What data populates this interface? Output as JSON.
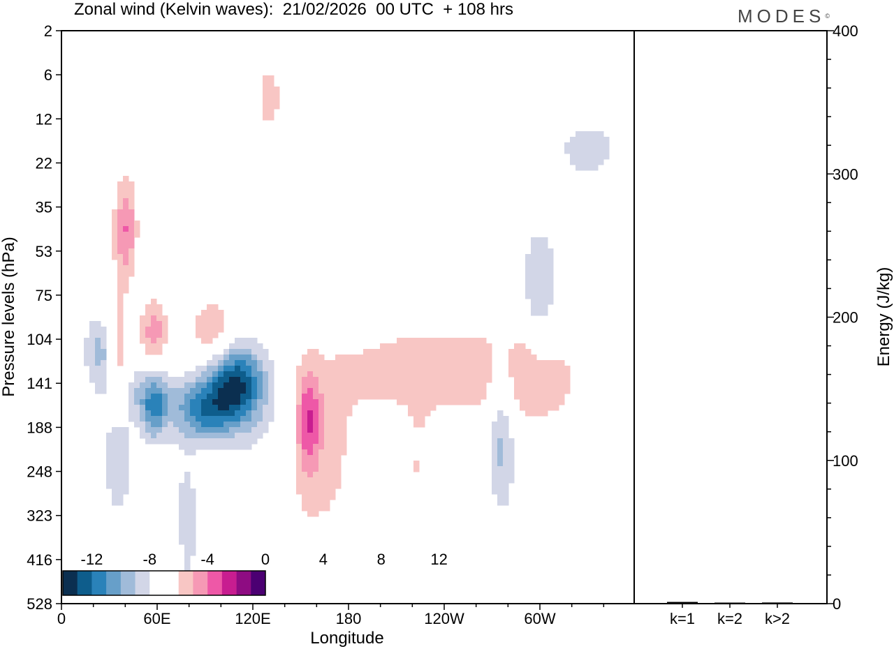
{
  "header": {
    "title": "Zonal wind (Kelvin waves):  21/02/2026  00 UTC  + 108 hrs",
    "logo": "MODES",
    "logo_mark": "©"
  },
  "chart_data": [
    {
      "type": "heatmap",
      "title": "Zonal wind (Kelvin waves):  21/02/2026  00 UTC  + 108 hrs",
      "xlabel": "Longitude",
      "ylabel": "Pressure levels (hPa)",
      "x_ticks": [
        "0",
        "60E",
        "120E",
        "180",
        "120W",
        "60W"
      ],
      "y_ticks": [
        "2",
        "6",
        "12",
        "22",
        "35",
        "53",
        "75",
        "104",
        "141",
        "188",
        "248",
        "323",
        "416",
        "528"
      ],
      "legend": {
        "labels": [
          "-12",
          "-8",
          "-4",
          "0",
          "4",
          "8",
          "12"
        ],
        "colors": [
          "#0b2f50",
          "#0e5d8c",
          "#2a82b9",
          "#679fc9",
          "#a0bbd9",
          "#d2d6e7",
          "#ffffff",
          "#ffffff",
          "#f8c6c4",
          "#f699b5",
          "#ee58a7",
          "#c81d90",
          "#8e0c82",
          "#4b0072"
        ],
        "placement": "bottom-left"
      },
      "regions": [
        {
          "lon": 40,
          "lev": 4.5,
          "sigma_lon": 5,
          "sigma_lev": 0.8,
          "value": 6
        },
        {
          "lon": 35,
          "lev": 7.5,
          "sigma_lon": 5,
          "sigma_lev": 1.0,
          "value": 5
        },
        {
          "lon": 130,
          "lev": 1.5,
          "sigma_lon": 6,
          "sigma_lev": 0.6,
          "value": 3
        },
        {
          "lon": 25,
          "lev": 7.3,
          "sigma_lon": 8,
          "sigma_lev": 0.6,
          "value": -5
        },
        {
          "lon": 50,
          "lev": 8.2,
          "sigma_lon": 15,
          "sigma_lev": 0.4,
          "value": -3
        },
        {
          "lon": 58,
          "lev": 6.8,
          "sigma_lon": 6,
          "sigma_lev": 0.5,
          "value": 5
        },
        {
          "lon": 95,
          "lev": 6.8,
          "sigma_lon": 10,
          "sigma_lev": 0.5,
          "value": 4
        },
        {
          "lon": 110,
          "lev": 8.0,
          "sigma_lon": 12,
          "sigma_lev": 0.6,
          "value": -11
        },
        {
          "lon": 90,
          "lev": 8.6,
          "sigma_lon": 14,
          "sigma_lev": 0.5,
          "value": -9
        },
        {
          "lon": 58,
          "lev": 8.6,
          "sigma_lon": 6,
          "sigma_lev": 0.5,
          "value": -7
        },
        {
          "lon": 35,
          "lev": 9.6,
          "sigma_lon": 7,
          "sigma_lev": 1.0,
          "value": -4
        },
        {
          "lon": 10,
          "lev": 9.6,
          "sigma_lon": 8,
          "sigma_lev": 1.2,
          "value": 2
        },
        {
          "lon": 130,
          "lev": 8.9,
          "sigma_lon": 14,
          "sigma_lev": 1.2,
          "value": -2
        },
        {
          "lon": 75,
          "lev": 10.8,
          "sigma_lon": 8,
          "sigma_lev": 1.0,
          "value": -2
        },
        {
          "lon": 160,
          "lev": 9.6,
          "sigma_lon": 18,
          "sigma_lev": 1.5,
          "value": 3
        },
        {
          "lon": 155,
          "lev": 8.8,
          "sigma_lon": 5,
          "sigma_lev": 0.8,
          "value": 6
        },
        {
          "lon": 225,
          "lev": 7.7,
          "sigma_lon": 40,
          "sigma_lev": 0.8,
          "value": 3
        },
        {
          "lon": 295,
          "lev": 7.9,
          "sigma_lon": 25,
          "sigma_lev": 0.9,
          "value": 3
        },
        {
          "lon": 276,
          "lev": 9.2,
          "sigma_lon": 6,
          "sigma_lev": 1.2,
          "value": -5
        },
        {
          "lon": 300,
          "lev": 5.8,
          "sigma_lon": 8,
          "sigma_lev": 1.0,
          "value": -4
        },
        {
          "lon": 240,
          "lev": 12.4,
          "sigma_lon": 10,
          "sigma_lev": 0.6,
          "value": 2
        },
        {
          "lon": 224,
          "lev": 10.0,
          "sigma_lon": 6,
          "sigma_lev": 1.0,
          "value": 2
        },
        {
          "lon": 235,
          "lev": 1.5,
          "sigma_lon": 25,
          "sigma_lev": 0.4,
          "value": -2
        },
        {
          "lon": 330,
          "lev": 2.7,
          "sigma_lon": 15,
          "sigma_lev": 0.5,
          "value": -3
        },
        {
          "lon": 155,
          "lev": 3.0,
          "sigma_lon": 12,
          "sigma_lev": 0.3,
          "value": 2
        },
        {
          "lon": 215,
          "lev": 2.2,
          "sigma_lon": 15,
          "sigma_lev": 0.3,
          "value": 2
        },
        {
          "lon": 80,
          "lev": 11.5,
          "sigma_lon": 3,
          "sigma_lev": 1.0,
          "value": -2
        },
        {
          "lon": 115,
          "lev": 11.5,
          "sigma_lon": 3,
          "sigma_lev": 1.0,
          "value": -2
        }
      ]
    },
    {
      "type": "bar",
      "ylabel": "Energy (J/kg)",
      "categories": [
        "k=1",
        "k=2",
        "k>2"
      ],
      "values": [
        1.2,
        0.6,
        0.8
      ],
      "ylim": [
        0,
        400
      ],
      "y_ticks": [
        0,
        100,
        200,
        300,
        400
      ]
    }
  ]
}
